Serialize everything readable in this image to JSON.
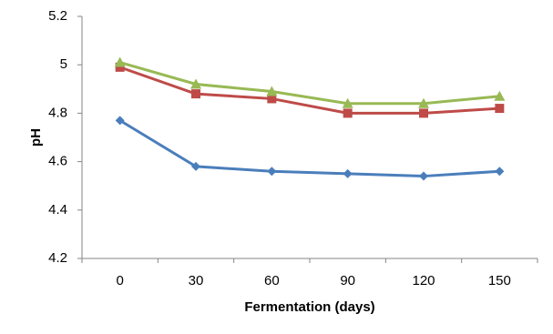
{
  "chart_data": {
    "type": "line",
    "x_label": "Fermentation (days)",
    "y_label": "pH",
    "categories": [
      "0",
      "30",
      "60",
      "90",
      "120",
      "150"
    ],
    "series": [
      {
        "color": "#4a7ebb",
        "marker": "diamond",
        "values": [
          4.77,
          4.58,
          4.56,
          4.55,
          4.54,
          4.56
        ]
      },
      {
        "color": "#be4b48",
        "marker": "square",
        "values": [
          4.99,
          4.88,
          4.86,
          4.8,
          4.8,
          4.82
        ]
      },
      {
        "color": "#98b954",
        "marker": "triangle",
        "values": [
          5.01,
          4.92,
          4.89,
          4.84,
          4.84,
          4.87
        ]
      }
    ],
    "ylim": [
      4.2,
      5.2
    ],
    "yticks": [
      4.2,
      4.4,
      4.6,
      4.8,
      5,
      5.2
    ],
    "grid": false
  }
}
